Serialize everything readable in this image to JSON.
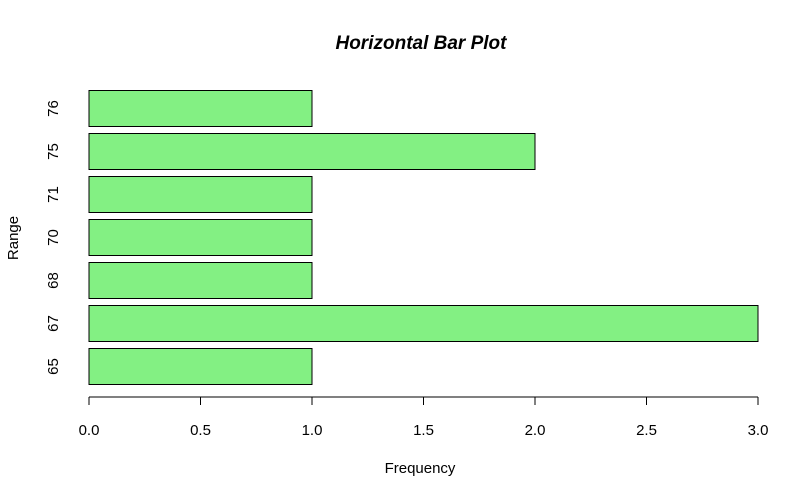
{
  "chart_data": {
    "type": "bar",
    "orientation": "horizontal",
    "title": "Horizontal Bar Plot",
    "xlabel": "Frequency",
    "ylabel": "Range",
    "categories": [
      "65",
      "67",
      "68",
      "70",
      "71",
      "75",
      "76"
    ],
    "values": [
      1,
      3,
      1,
      1,
      1,
      2,
      1
    ],
    "xlim": [
      0,
      3
    ],
    "xticks": [
      "0.0",
      "0.5",
      "1.0",
      "1.5",
      "2.0",
      "2.5",
      "3.0"
    ],
    "bar_color": "#83f083",
    "grid": false,
    "legend": "none"
  }
}
